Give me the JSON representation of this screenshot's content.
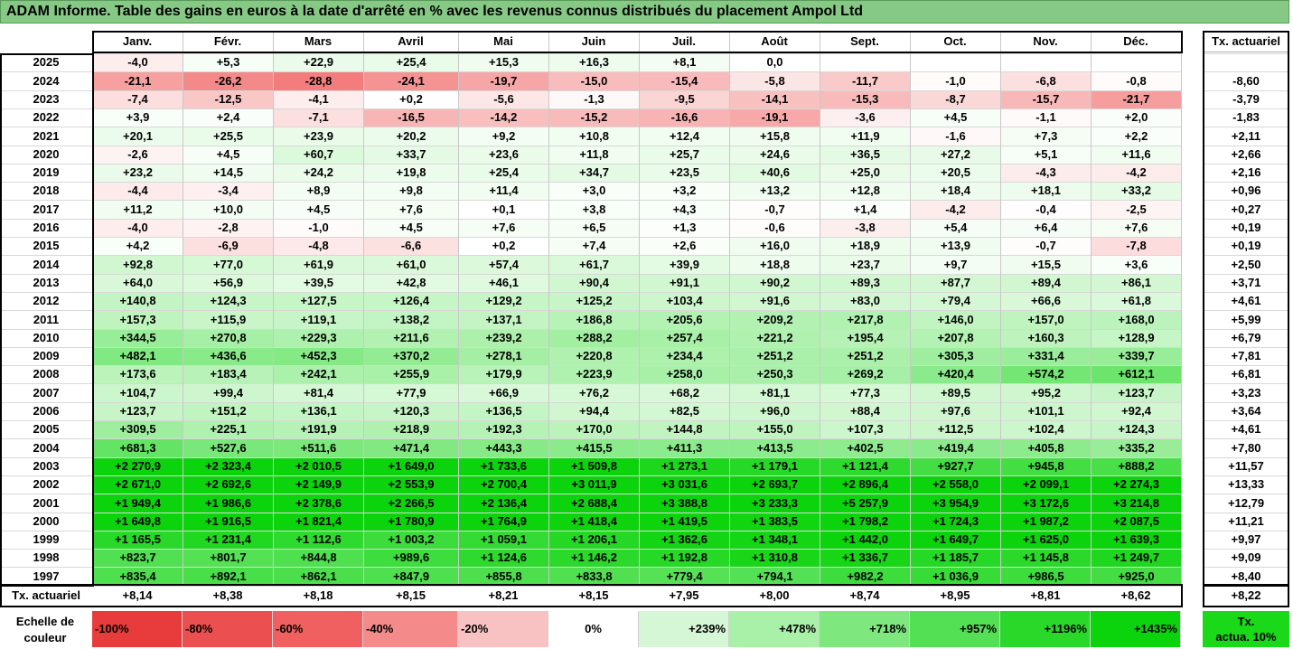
{
  "title": "ADAM Informe. Table des gains en euros à la date d'arrêté en % avec les revenus connus distribués du placement Ampol Ltd",
  "months": [
    "Janv.",
    "Févr.",
    "Mars",
    "Avril",
    "Mai",
    "Juin",
    "Juil.",
    "Août",
    "Sept.",
    "Oct.",
    "Nov.",
    "Déc."
  ],
  "tx_header": "Tx. actuariel",
  "chart_data": {
    "type": "table",
    "rows": [
      {
        "year": "2025",
        "values": [
          "-4,0",
          "+5,3",
          "+22,9",
          "+25,4",
          "+15,3",
          "+16,3",
          "+8,1",
          "0,0",
          "",
          "",
          "",
          ""
        ],
        "tx": ""
      },
      {
        "year": "2024",
        "values": [
          "-21,1",
          "-26,2",
          "-28,8",
          "-24,1",
          "-19,7",
          "-15,0",
          "-15,4",
          "-5,8",
          "-11,7",
          "-1,0",
          "-6,8",
          "-0,8"
        ],
        "tx": "-8,60"
      },
      {
        "year": "2023",
        "values": [
          "-7,4",
          "-12,5",
          "-4,1",
          "+0,2",
          "-5,6",
          "-1,3",
          "-9,5",
          "-14,1",
          "-15,3",
          "-8,7",
          "-15,7",
          "-21,7"
        ],
        "tx": "-3,79"
      },
      {
        "year": "2022",
        "values": [
          "+3,9",
          "+2,4",
          "-7,1",
          "-16,5",
          "-14,2",
          "-15,2",
          "-16,6",
          "-19,1",
          "-3,6",
          "+4,5",
          "-1,1",
          "+2,0"
        ],
        "tx": "-1,83"
      },
      {
        "year": "2021",
        "values": [
          "+20,1",
          "+25,5",
          "+23,9",
          "+20,2",
          "+9,2",
          "+10,8",
          "+12,4",
          "+15,8",
          "+11,9",
          "-1,6",
          "+7,3",
          "+2,2"
        ],
        "tx": "+2,11"
      },
      {
        "year": "2020",
        "values": [
          "-2,6",
          "+4,5",
          "+60,7",
          "+33,7",
          "+23,6",
          "+11,8",
          "+25,7",
          "+24,6",
          "+36,5",
          "+27,2",
          "+5,1",
          "+11,6"
        ],
        "tx": "+2,66"
      },
      {
        "year": "2019",
        "values": [
          "+23,2",
          "+14,5",
          "+24,2",
          "+19,8",
          "+25,4",
          "+34,7",
          "+23,5",
          "+40,6",
          "+25,0",
          "+20,5",
          "-4,3",
          "-4,2"
        ],
        "tx": "+2,16"
      },
      {
        "year": "2018",
        "values": [
          "-4,4",
          "-3,4",
          "+8,9",
          "+9,8",
          "+11,4",
          "+3,0",
          "+3,2",
          "+13,2",
          "+12,8",
          "+18,4",
          "+18,1",
          "+33,2"
        ],
        "tx": "+0,96"
      },
      {
        "year": "2017",
        "values": [
          "+11,2",
          "+10,0",
          "+4,5",
          "+7,6",
          "+0,1",
          "+3,8",
          "+4,3",
          "-0,7",
          "+1,4",
          "-4,2",
          "-0,4",
          "-2,5"
        ],
        "tx": "+0,27"
      },
      {
        "year": "2016",
        "values": [
          "-4,0",
          "-2,8",
          "-1,0",
          "+4,5",
          "+7,6",
          "+6,5",
          "+1,3",
          "-0,6",
          "-3,8",
          "+5,4",
          "+6,4",
          "+7,6"
        ],
        "tx": "+0,19"
      },
      {
        "year": "2015",
        "values": [
          "+4,2",
          "-6,9",
          "-4,8",
          "-6,6",
          "+0,2",
          "+7,4",
          "+2,6",
          "+16,0",
          "+18,9",
          "+13,9",
          "-0,7",
          "-7,8"
        ],
        "tx": "+0,19"
      },
      {
        "year": "2014",
        "values": [
          "+92,8",
          "+77,0",
          "+61,9",
          "+61,0",
          "+57,4",
          "+61,7",
          "+39,9",
          "+18,8",
          "+23,7",
          "+9,7",
          "+15,5",
          "+3,6"
        ],
        "tx": "+2,50"
      },
      {
        "year": "2013",
        "values": [
          "+64,0",
          "+56,9",
          "+39,5",
          "+42,8",
          "+46,1",
          "+90,4",
          "+91,1",
          "+90,2",
          "+89,3",
          "+87,7",
          "+89,4",
          "+86,1"
        ],
        "tx": "+3,71"
      },
      {
        "year": "2012",
        "values": [
          "+140,8",
          "+124,3",
          "+127,5",
          "+126,4",
          "+129,2",
          "+125,2",
          "+103,4",
          "+91,6",
          "+83,0",
          "+79,4",
          "+66,6",
          "+61,8"
        ],
        "tx": "+4,61"
      },
      {
        "year": "2011",
        "values": [
          "+157,3",
          "+115,9",
          "+119,1",
          "+138,2",
          "+137,1",
          "+186,8",
          "+205,6",
          "+209,2",
          "+217,8",
          "+146,0",
          "+157,0",
          "+168,0"
        ],
        "tx": "+5,99"
      },
      {
        "year": "2010",
        "values": [
          "+344,5",
          "+270,8",
          "+229,3",
          "+211,6",
          "+239,2",
          "+288,2",
          "+257,4",
          "+221,2",
          "+195,4",
          "+207,8",
          "+160,3",
          "+128,9"
        ],
        "tx": "+6,79"
      },
      {
        "year": "2009",
        "values": [
          "+482,1",
          "+436,6",
          "+452,3",
          "+370,2",
          "+278,1",
          "+220,8",
          "+234,4",
          "+251,2",
          "+251,2",
          "+305,3",
          "+331,4",
          "+339,7"
        ],
        "tx": "+7,81"
      },
      {
        "year": "2008",
        "values": [
          "+173,6",
          "+183,4",
          "+242,1",
          "+255,9",
          "+179,9",
          "+223,9",
          "+258,0",
          "+250,3",
          "+269,2",
          "+420,4",
          "+574,2",
          "+612,1"
        ],
        "tx": "+6,81"
      },
      {
        "year": "2007",
        "values": [
          "+104,7",
          "+99,4",
          "+81,4",
          "+77,9",
          "+66,9",
          "+76,2",
          "+68,2",
          "+81,1",
          "+77,3",
          "+89,5",
          "+95,2",
          "+123,7"
        ],
        "tx": "+3,23"
      },
      {
        "year": "2006",
        "values": [
          "+123,7",
          "+151,2",
          "+136,1",
          "+120,3",
          "+136,5",
          "+94,4",
          "+82,5",
          "+96,0",
          "+88,4",
          "+97,6",
          "+101,1",
          "+92,4"
        ],
        "tx": "+3,64"
      },
      {
        "year": "2005",
        "values": [
          "+309,5",
          "+225,1",
          "+191,9",
          "+218,9",
          "+192,3",
          "+170,0",
          "+144,8",
          "+155,0",
          "+107,3",
          "+112,5",
          "+102,4",
          "+124,3"
        ],
        "tx": "+4,61"
      },
      {
        "year": "2004",
        "values": [
          "+681,3",
          "+527,6",
          "+511,6",
          "+471,4",
          "+443,3",
          "+415,5",
          "+411,3",
          "+413,5",
          "+402,5",
          "+419,4",
          "+405,8",
          "+335,2"
        ],
        "tx": "+7,80"
      },
      {
        "year": "2003",
        "values": [
          "+2 270,9",
          "+2 323,4",
          "+2 010,5",
          "+1 649,0",
          "+1 733,6",
          "+1 509,8",
          "+1 273,1",
          "+1 179,1",
          "+1 121,4",
          "+927,7",
          "+945,8",
          "+888,2"
        ],
        "tx": "+11,57"
      },
      {
        "year": "2002",
        "values": [
          "+2 671,0",
          "+2 692,6",
          "+2 149,9",
          "+2 553,9",
          "+2 700,4",
          "+3 011,9",
          "+3 031,6",
          "+2 693,7",
          "+2 896,4",
          "+2 558,0",
          "+2 099,1",
          "+2 274,3"
        ],
        "tx": "+13,33"
      },
      {
        "year": "2001",
        "values": [
          "+1 949,4",
          "+1 986,6",
          "+2 378,6",
          "+2 266,5",
          "+2 136,4",
          "+2 688,4",
          "+3 388,8",
          "+3 233,3",
          "+5 257,9",
          "+3 954,9",
          "+3 172,6",
          "+3 214,8"
        ],
        "tx": "+12,79"
      },
      {
        "year": "2000",
        "values": [
          "+1 649,8",
          "+1 916,5",
          "+1 821,4",
          "+1 780,9",
          "+1 764,9",
          "+1 418,4",
          "+1 419,5",
          "+1 383,5",
          "+1 798,2",
          "+1 724,3",
          "+1 987,2",
          "+2 087,5"
        ],
        "tx": "+11,21"
      },
      {
        "year": "1999",
        "values": [
          "+1 165,5",
          "+1 231,4",
          "+1 112,6",
          "+1 003,2",
          "+1 059,1",
          "+1 206,1",
          "+1 362,6",
          "+1 348,1",
          "+1 442,0",
          "+1 649,7",
          "+1 625,0",
          "+1 639,3"
        ],
        "tx": "+9,97"
      },
      {
        "year": "1998",
        "values": [
          "+823,7",
          "+801,7",
          "+844,8",
          "+989,6",
          "+1 124,6",
          "+1 146,2",
          "+1 192,8",
          "+1 310,8",
          "+1 336,7",
          "+1 185,7",
          "+1 145,8",
          "+1 249,7"
        ],
        "tx": "+9,09"
      },
      {
        "year": "1997",
        "values": [
          "+835,4",
          "+892,1",
          "+862,1",
          "+847,9",
          "+855,8",
          "+833,8",
          "+779,4",
          "+794,1",
          "+982,2",
          "+1 036,9",
          "+986,5",
          "+925,0"
        ],
        "tx": "+8,40"
      }
    ],
    "footer": {
      "label": "Tx. actuariel",
      "values": [
        "+8,14",
        "+8,38",
        "+8,18",
        "+8,15",
        "+8,21",
        "+8,15",
        "+7,95",
        "+8,00",
        "+8,74",
        "+8,95",
        "+8,81",
        "+8,62"
      ],
      "tx": "+8,22"
    }
  },
  "scale": {
    "label_line1": "Echelle de",
    "label_line2": "couleur",
    "items": [
      {
        "text": "-100%",
        "color": "#e83c3c",
        "align": "left"
      },
      {
        "text": "-80%",
        "color": "#ec4f4f",
        "align": "left"
      },
      {
        "text": "-60%",
        "color": "#f06060",
        "align": "left"
      },
      {
        "text": "-40%",
        "color": "#f48a8a",
        "align": "left"
      },
      {
        "text": "-20%",
        "color": "#f9c2c2",
        "align": "left"
      },
      {
        "text": "0%",
        "color": "#ffffff",
        "align": "center"
      },
      {
        "text": "+239%",
        "color": "#d6f7d6",
        "align": "right"
      },
      {
        "text": "+478%",
        "color": "#a9f0a9",
        "align": "right"
      },
      {
        "text": "+718%",
        "color": "#7ee87e",
        "align": "right"
      },
      {
        "text": "+957%",
        "color": "#54e054",
        "align": "right"
      },
      {
        "text": "+1196%",
        "color": "#2ad82a",
        "align": "right"
      },
      {
        "text": "+1435%",
        "color": "#0cd40c",
        "align": "right"
      }
    ],
    "tx_line1": "Tx.",
    "tx_line2": "actua. 10%"
  }
}
